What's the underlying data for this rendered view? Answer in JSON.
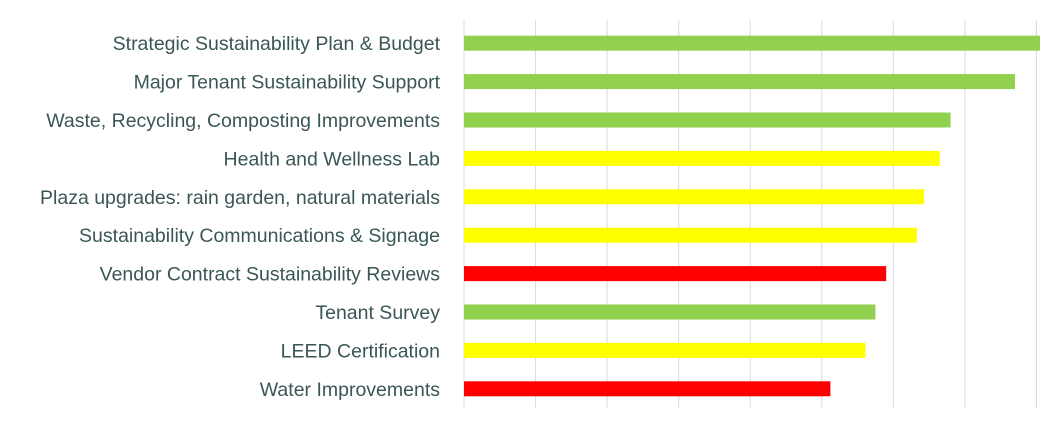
{
  "chart_data": {
    "type": "bar",
    "orientation": "horizontal",
    "categories": [
      "Strategic Sustainability Plan & Budget",
      "Major Tenant Sustainability Support",
      "Waste, Recycling, Composting Improvements",
      "Health and Wellness Lab",
      "Plaza upgrades: rain garden, natural materials",
      "Sustainability Communications & Signage ",
      "Vendor Contract Sustainability Reviews",
      "Tenant Survey",
      "LEED Certification",
      "Water Improvements"
    ],
    "values": [
      8.05,
      7.7,
      6.8,
      6.65,
      6.43,
      6.33,
      5.9,
      5.75,
      5.61,
      5.12
    ],
    "bar_colors": [
      "#92d050",
      "#92d050",
      "#92d050",
      "#ffff00",
      "#ffff00",
      "#ffff00",
      "#ff0000",
      "#92d050",
      "#ffff00",
      "#ff0000"
    ],
    "xlim": [
      0,
      8.05
    ],
    "grid_step": 1,
    "grid": true,
    "title": "",
    "xlabel": "",
    "ylabel": ""
  }
}
